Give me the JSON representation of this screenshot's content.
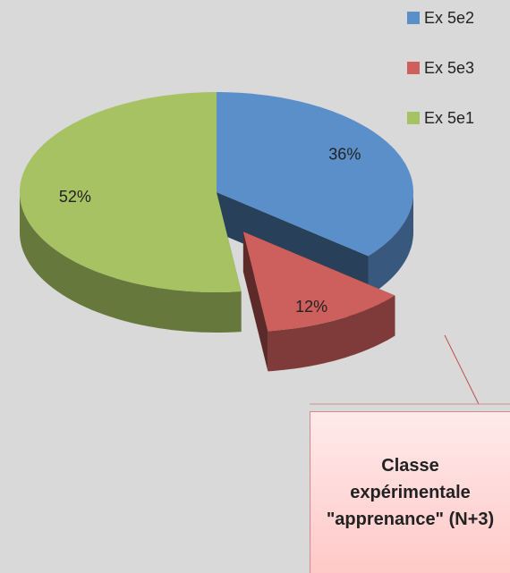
{
  "chart_data": {
    "type": "pie",
    "categories": [
      "Ex 5e2",
      "Ex 5e3",
      "Ex 5e1"
    ],
    "values": [
      36,
      12,
      52
    ],
    "value_labels": [
      "36%",
      "12%",
      "52%"
    ],
    "colors": [
      "#5b8fca",
      "#cd5f5c",
      "#a6c263"
    ],
    "exploded": [
      false,
      true,
      false
    ],
    "legend": "top-right",
    "annotation": "Classe expérimentale \"apprenance\" (N+3)"
  }
}
